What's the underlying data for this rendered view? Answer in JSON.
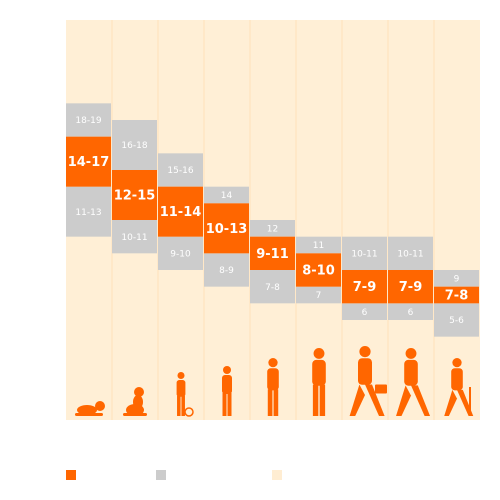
{
  "chart_data": {
    "type": "bar",
    "title": "",
    "xlabel": "",
    "ylabel": "",
    "ylim": [
      0,
      24
    ],
    "grid": false,
    "legend_placement": "bottom",
    "categories": [
      "Newborn",
      "Infant",
      "Toddler",
      "Preschool",
      "School age",
      "Teen",
      "Young adult",
      "Adult",
      "Older adult"
    ],
    "series": [
      {
        "name": "",
        "ranges": [
          [
            14,
            17
          ],
          [
            12,
            15
          ],
          [
            11,
            14
          ],
          [
            10,
            13
          ],
          [
            9,
            11
          ],
          [
            8,
            10
          ],
          [
            7,
            9
          ],
          [
            7,
            9
          ],
          [
            7,
            8
          ]
        ],
        "labels": [
          "14-17",
          "12-15",
          "11-14",
          "10-13",
          "9-11",
          "8-10",
          "7-9",
          "7-9",
          "7-8"
        ]
      },
      {
        "name": "",
        "ranges": [
          [
            17,
            19
          ],
          [
            15,
            18
          ],
          [
            14,
            16
          ],
          [
            13,
            14
          ],
          [
            11,
            12
          ],
          [
            10,
            11
          ],
          [
            9,
            11
          ],
          [
            9,
            11
          ],
          [
            8,
            9
          ]
        ],
        "labels": [
          "18-19",
          "16-18",
          "15-16",
          "14",
          "12",
          "11",
          "10-11",
          "10-11",
          "9"
        ]
      },
      {
        "name": "",
        "ranges": [
          [
            11,
            14
          ],
          [
            10,
            12
          ],
          [
            9,
            11
          ],
          [
            8,
            10
          ],
          [
            7,
            9
          ],
          [
            7,
            8
          ],
          [
            6,
            7
          ],
          [
            6,
            7
          ],
          [
            5,
            7
          ]
        ],
        "labels": [
          "11-13",
          "10-11",
          "9-10",
          "8-9",
          "7-8",
          "7",
          "6",
          "6",
          "5-6"
        ]
      }
    ],
    "figures": [
      "baby-crawling-icon",
      "baby-sitting-icon",
      "toddler-icon",
      "child-icon",
      "kid-icon",
      "teen-icon",
      "adult-briefcase-icon",
      "adult-walking-icon",
      "elder-cane-icon"
    ],
    "legend": [
      {
        "label": "",
        "color": "#ff6600"
      },
      {
        "label": "",
        "color": "#cccccc"
      },
      {
        "label": "",
        "color": "#ffedd2"
      }
    ],
    "colors": {
      "recommended": "#ff6600",
      "may_be_appropriate": "#cccccc",
      "background": "#ffefd6",
      "silhouette": "#ff6600",
      "label_light": "#ffffff"
    }
  }
}
